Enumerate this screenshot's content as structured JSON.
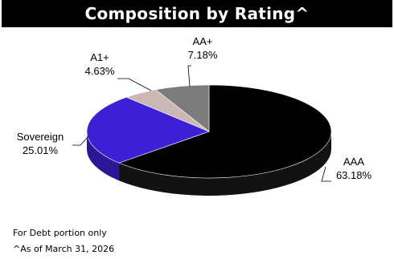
{
  "title": "Composition by Rating^",
  "notes": {
    "line1": "For Debt portion only",
    "line2": "^As of March 31, 2026"
  },
  "chart_data": {
    "type": "pie",
    "style": "3d",
    "title": "Composition by Rating^",
    "slices": [
      {
        "label": "AAA",
        "value": 63.18,
        "display": "63.18%",
        "color": "#000000"
      },
      {
        "label": "Sovereign",
        "value": 25.01,
        "display": "25.01%",
        "color": "#3d1fd6"
      },
      {
        "label": "A1+",
        "value": 4.63,
        "display": "4.63%",
        "color": "#c9b8b4"
      },
      {
        "label": "AA+",
        "value": 7.18,
        "display": "7.18%",
        "color": "#7c7c7c"
      }
    ]
  }
}
